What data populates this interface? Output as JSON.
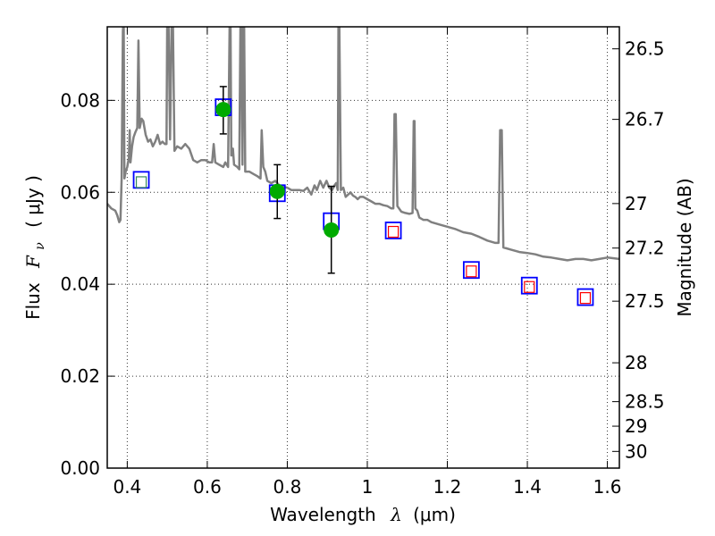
{
  "chart_data": {
    "type": "scatter",
    "xlabel_text": "Wavelength",
    "xlabel_symbol": "λ",
    "xlabel_unit": "(μm)",
    "ylabel_text": "Flux",
    "ylabel_symbol": "F",
    "ylabel_subscript": "ν",
    "ylabel_unit": "( μJy )",
    "ylabel_right": "Magnitude (AB)",
    "xlim": [
      0.35,
      1.63
    ],
    "ylim": [
      0.0,
      0.096
    ],
    "grid": true,
    "x_ticks": [
      {
        "value": 0.4,
        "label": "0.4"
      },
      {
        "value": 0.6,
        "label": "0.6"
      },
      {
        "value": 0.8,
        "label": "0.8"
      },
      {
        "value": 1.0,
        "label": "1"
      },
      {
        "value": 1.2,
        "label": "1.2"
      },
      {
        "value": 1.4,
        "label": "1.4"
      },
      {
        "value": 1.6,
        "label": "1.6"
      }
    ],
    "y_ticks": [
      {
        "value": 0.0,
        "label": "0.00"
      },
      {
        "value": 0.02,
        "label": "0.02"
      },
      {
        "value": 0.04,
        "label": "0.04"
      },
      {
        "value": 0.06,
        "label": "0.06"
      },
      {
        "value": 0.08,
        "label": "0.08"
      }
    ],
    "mag_ticks": [
      {
        "value": 26.5,
        "label": "26.5"
      },
      {
        "value": 26.7,
        "label": "26.7"
      },
      {
        "value": 27.0,
        "label": "27"
      },
      {
        "value": 27.2,
        "label": "27.2"
      },
      {
        "value": 27.5,
        "label": "27.5"
      },
      {
        "value": 28.0,
        "label": "28"
      },
      {
        "value": 28.5,
        "label": "28.5"
      },
      {
        "value": 29.0,
        "label": "29"
      },
      {
        "value": 30.0,
        "label": "30"
      }
    ],
    "series": [
      {
        "kind": "line",
        "color": "#808080",
        "points": [
          [
            0.35,
            0.0575
          ],
          [
            0.36,
            0.0565
          ],
          [
            0.37,
            0.056
          ],
          [
            0.375,
            0.055
          ],
          [
            0.38,
            0.0535
          ],
          [
            0.383,
            0.054
          ],
          [
            0.386,
            0.063
          ],
          [
            0.389,
            0.095
          ],
          [
            0.391,
            0.098
          ],
          [
            0.393,
            0.063
          ],
          [
            0.396,
            0.0645
          ],
          [
            0.4,
            0.0655
          ],
          [
            0.404,
            0.0675
          ],
          [
            0.406,
            0.0735
          ],
          [
            0.408,
            0.0665
          ],
          [
            0.412,
            0.07
          ],
          [
            0.416,
            0.072
          ],
          [
            0.42,
            0.073
          ],
          [
            0.425,
            0.074
          ],
          [
            0.428,
            0.093
          ],
          [
            0.431,
            0.074
          ],
          [
            0.436,
            0.076
          ],
          [
            0.44,
            0.0755
          ],
          [
            0.446,
            0.0725
          ],
          [
            0.452,
            0.071
          ],
          [
            0.458,
            0.0715
          ],
          [
            0.464,
            0.07
          ],
          [
            0.47,
            0.071
          ],
          [
            0.476,
            0.0725
          ],
          [
            0.482,
            0.0705
          ],
          [
            0.488,
            0.071
          ],
          [
            0.494,
            0.0705
          ],
          [
            0.498,
            0.0705
          ],
          [
            0.5,
            0.098
          ],
          [
            0.503,
            0.098
          ],
          [
            0.507,
            0.0715
          ],
          [
            0.511,
            0.098
          ],
          [
            0.514,
            0.098
          ],
          [
            0.518,
            0.069
          ],
          [
            0.525,
            0.07
          ],
          [
            0.535,
            0.0695
          ],
          [
            0.545,
            0.0705
          ],
          [
            0.555,
            0.0695
          ],
          [
            0.565,
            0.067
          ],
          [
            0.575,
            0.0665
          ],
          [
            0.585,
            0.067
          ],
          [
            0.595,
            0.067
          ],
          [
            0.605,
            0.0665
          ],
          [
            0.612,
            0.0665
          ],
          [
            0.616,
            0.0705
          ],
          [
            0.62,
            0.0665
          ],
          [
            0.63,
            0.066
          ],
          [
            0.64,
            0.0655
          ],
          [
            0.645,
            0.0665
          ],
          [
            0.652,
            0.0655
          ],
          [
            0.656,
            0.098
          ],
          [
            0.658,
            0.098
          ],
          [
            0.66,
            0.068
          ],
          [
            0.664,
            0.0695
          ],
          [
            0.667,
            0.066
          ],
          [
            0.675,
            0.0655
          ],
          [
            0.68,
            0.065
          ],
          [
            0.683,
            0.098
          ],
          [
            0.685,
            0.098
          ],
          [
            0.688,
            0.066
          ],
          [
            0.69,
            0.098
          ],
          [
            0.692,
            0.098
          ],
          [
            0.695,
            0.0645
          ],
          [
            0.705,
            0.0645
          ],
          [
            0.715,
            0.064
          ],
          [
            0.725,
            0.0635
          ],
          [
            0.733,
            0.063
          ],
          [
            0.736,
            0.0735
          ],
          [
            0.74,
            0.0655
          ],
          [
            0.745,
            0.0645
          ],
          [
            0.75,
            0.0625
          ],
          [
            0.76,
            0.062
          ],
          [
            0.77,
            0.0625
          ],
          [
            0.78,
            0.0615
          ],
          [
            0.79,
            0.0612
          ],
          [
            0.8,
            0.061
          ],
          [
            0.81,
            0.0605
          ],
          [
            0.82,
            0.0605
          ],
          [
            0.83,
            0.0605
          ],
          [
            0.84,
            0.0603
          ],
          [
            0.85,
            0.061
          ],
          [
            0.86,
            0.0595
          ],
          [
            0.868,
            0.0615
          ],
          [
            0.874,
            0.0605
          ],
          [
            0.882,
            0.0625
          ],
          [
            0.89,
            0.061
          ],
          [
            0.898,
            0.0625
          ],
          [
            0.905,
            0.061
          ],
          [
            0.912,
            0.0605
          ],
          [
            0.918,
            0.0615
          ],
          [
            0.922,
            0.062
          ],
          [
            0.926,
            0.0605
          ],
          [
            0.928,
            0.098
          ],
          [
            0.93,
            0.098
          ],
          [
            0.934,
            0.0605
          ],
          [
            0.94,
            0.061
          ],
          [
            0.946,
            0.059
          ],
          [
            0.952,
            0.0595
          ],
          [
            0.958,
            0.06
          ],
          [
            0.964,
            0.0593
          ],
          [
            0.97,
            0.059
          ],
          [
            0.976,
            0.0585
          ],
          [
            0.982,
            0.059
          ],
          [
            0.99,
            0.059
          ],
          [
            1.0,
            0.0585
          ],
          [
            1.01,
            0.058
          ],
          [
            1.02,
            0.0575
          ],
          [
            1.03,
            0.0575
          ],
          [
            1.04,
            0.0572
          ],
          [
            1.05,
            0.057
          ],
          [
            1.06,
            0.0565
          ],
          [
            1.065,
            0.0565
          ],
          [
            1.068,
            0.077
          ],
          [
            1.071,
            0.077
          ],
          [
            1.075,
            0.057
          ],
          [
            1.085,
            0.0558
          ],
          [
            1.095,
            0.0555
          ],
          [
            1.105,
            0.0553
          ],
          [
            1.113,
            0.0555
          ],
          [
            1.116,
            0.0755
          ],
          [
            1.118,
            0.0755
          ],
          [
            1.12,
            0.0565
          ],
          [
            1.125,
            0.056
          ],
          [
            1.13,
            0.0545
          ],
          [
            1.14,
            0.054
          ],
          [
            1.15,
            0.054
          ],
          [
            1.16,
            0.0535
          ],
          [
            1.18,
            0.053
          ],
          [
            1.2,
            0.0525
          ],
          [
            1.22,
            0.052
          ],
          [
            1.24,
            0.0513
          ],
          [
            1.26,
            0.051
          ],
          [
            1.28,
            0.0503
          ],
          [
            1.3,
            0.0495
          ],
          [
            1.32,
            0.049
          ],
          [
            1.328,
            0.049
          ],
          [
            1.332,
            0.0735
          ],
          [
            1.336,
            0.0735
          ],
          [
            1.34,
            0.048
          ],
          [
            1.36,
            0.0475
          ],
          [
            1.38,
            0.047
          ],
          [
            1.4,
            0.0468
          ],
          [
            1.42,
            0.0465
          ],
          [
            1.44,
            0.046
          ],
          [
            1.46,
            0.0458
          ],
          [
            1.48,
            0.0455
          ],
          [
            1.5,
            0.0452
          ],
          [
            1.52,
            0.0455
          ],
          [
            1.54,
            0.0455
          ],
          [
            1.56,
            0.0452
          ],
          [
            1.58,
            0.0455
          ],
          [
            1.6,
            0.0458
          ],
          [
            1.63,
            0.0455
          ]
        ]
      },
      {
        "kind": "open-square",
        "color": "#0000ff",
        "points": [
          [
            0.435,
            0.0627
          ],
          [
            0.64,
            0.0785
          ],
          [
            0.775,
            0.0598
          ],
          [
            0.91,
            0.0537
          ],
          [
            1.065,
            0.0517
          ],
          [
            1.26,
            0.0431
          ],
          [
            1.405,
            0.0397
          ],
          [
            1.545,
            0.0372
          ]
        ]
      },
      {
        "kind": "inner-square",
        "color": "#3a8a5a",
        "points": [
          [
            0.435,
            0.0622
          ]
        ]
      },
      {
        "kind": "inner-square",
        "color": "#ff0000",
        "points": [
          [
            1.065,
            0.0514
          ],
          [
            1.26,
            0.0428
          ],
          [
            1.405,
            0.0394
          ],
          [
            1.545,
            0.037
          ]
        ]
      },
      {
        "kind": "filled-circle",
        "color": "#00aa00",
        "points": [
          [
            0.64,
            0.078
          ],
          [
            0.775,
            0.0602
          ],
          [
            0.91,
            0.0518
          ]
        ],
        "y_err_low": [
          0.0727,
          0.0543,
          0.0424
        ],
        "y_err_high": [
          0.083,
          0.066,
          0.0613
        ]
      }
    ]
  }
}
